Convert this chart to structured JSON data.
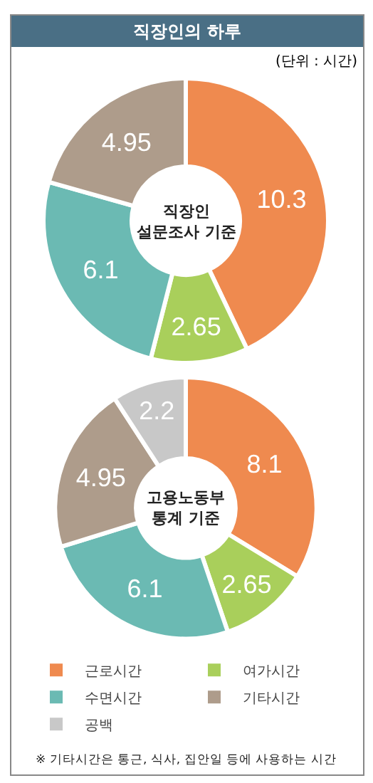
{
  "chart_data": [
    {
      "type": "donut",
      "title": "직장인의 하루",
      "subtitle": "(단위 : 시간)",
      "annotations": [
        "직장인\n설문조사 기준"
      ],
      "categories": [
        null,
        null,
        null,
        null
      ],
      "values": [
        10.3,
        2.65,
        6.1,
        4.95
      ],
      "colors": [
        "#ef8a4f",
        "#a9cf5b",
        "#6bbab3",
        "#ae9c8b"
      ],
      "data_labels": true
    },
    {
      "type": "donut",
      "annotations": [
        "고용노동부\n통계 기준",
        "※ 기타시간은 통근, 식사, 집안일 등에 사용하는 시간"
      ],
      "categories": [
        "근로시간",
        "여가시간",
        "수면시간",
        "기타시간",
        "공백"
      ],
      "values": [
        8.1,
        2.65,
        6.1,
        4.95,
        2.2
      ],
      "colors": [
        "#ef8a4f",
        "#a9cf5b",
        "#6bbab3",
        "#ae9c8b",
        "#c8c8c8"
      ],
      "data_labels": true,
      "legend": "bottom"
    }
  ]
}
